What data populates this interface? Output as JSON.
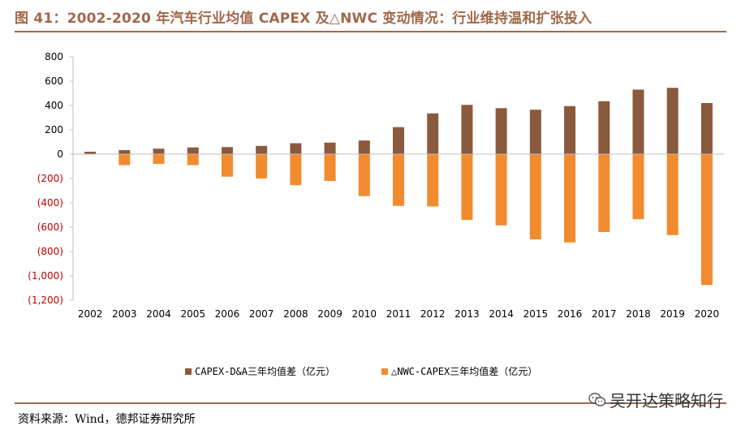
{
  "header": {
    "title": "图 41：2002-2020 年汽车行业均值 CAPEX 及△NWC 变动情况：行业维持温和扩张投入"
  },
  "footer": {
    "source": "资料来源：Wind，德邦证券研究所",
    "watermark": "吴开达策略知行"
  },
  "colors": {
    "accent": "#A0694A",
    "capex": "#8B5A3C",
    "nwc": "#F28B30"
  },
  "chart_data": {
    "type": "bar",
    "categories": [
      "2002",
      "2003",
      "2004",
      "2005",
      "2006",
      "2007",
      "2008",
      "2009",
      "2010",
      "2011",
      "2012",
      "2013",
      "2014",
      "2015",
      "2016",
      "2017",
      "2018",
      "2019",
      "2020"
    ],
    "series": [
      {
        "name": "CAPEX-D&A三年均值差（亿元）",
        "values": [
          20,
          33,
          45,
          55,
          58,
          68,
          90,
          95,
          112,
          222,
          335,
          405,
          378,
          365,
          395,
          435,
          530,
          545,
          420
        ]
      },
      {
        "name": "△NWC-CAPEX三年均值差（亿元）",
        "values": [
          0,
          -90,
          -80,
          -90,
          -185,
          -200,
          -255,
          -220,
          -345,
          -425,
          -430,
          -540,
          -585,
          -700,
          -725,
          -640,
          -535,
          -665,
          -1075
        ]
      }
    ],
    "ylim": [
      -1200,
      800
    ],
    "yticks": [
      800,
      600,
      400,
      200,
      0,
      -200,
      -400,
      -600,
      -800,
      -1000,
      -1200
    ],
    "ytick_labels": [
      "800",
      "600",
      "400",
      "200",
      "0",
      "(200)",
      "(400)",
      "(600)",
      "(800)",
      "(1,000)",
      "(1,200)"
    ],
    "legend_position": "bottom",
    "xlabel": "",
    "ylabel": ""
  }
}
